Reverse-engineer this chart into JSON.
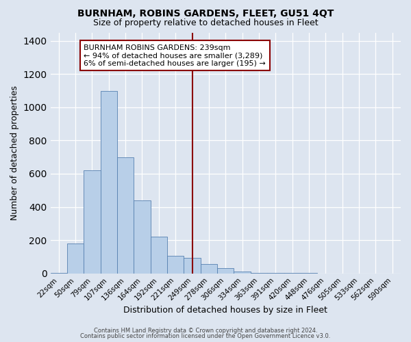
{
  "title": "BURNHAM, ROBINS GARDENS, FLEET, GU51 4QT",
  "subtitle": "Size of property relative to detached houses in Fleet",
  "xlabel": "Distribution of detached houses by size in Fleet",
  "ylabel": "Number of detached properties",
  "categories": [
    "22sqm",
    "50sqm",
    "79sqm",
    "107sqm",
    "136sqm",
    "164sqm",
    "192sqm",
    "221sqm",
    "249sqm",
    "278sqm",
    "306sqm",
    "334sqm",
    "363sqm",
    "391sqm",
    "420sqm",
    "448sqm",
    "476sqm",
    "505sqm",
    "533sqm",
    "562sqm",
    "590sqm"
  ],
  "bar_heights": [
    5,
    180,
    620,
    1100,
    700,
    440,
    220,
    105,
    95,
    55,
    30,
    10,
    5,
    3,
    2,
    1,
    0,
    0,
    0,
    0,
    0
  ],
  "bar_color": "#b8cfe8",
  "bar_edge_color": "#5580b0",
  "background_color": "#dde5f0",
  "grid_color": "#ffffff",
  "annotation_box_text": "BURNHAM ROBINS GARDENS: 239sqm\n← 94% of detached houses are smaller (3,289)\n6% of semi-detached houses are larger (195) →",
  "annotation_box_color": "#ffffff",
  "annotation_line_color": "#8b0000",
  "ylim": [
    0,
    1450
  ],
  "yticks": [
    0,
    200,
    400,
    600,
    800,
    1000,
    1200,
    1400
  ],
  "footer_line1": "Contains HM Land Registry data © Crown copyright and database right 2024.",
  "footer_line2": "Contains public sector information licensed under the Open Government Licence v3.0.",
  "title_fontsize": 10,
  "subtitle_fontsize": 9,
  "xlabel_fontsize": 9,
  "ylabel_fontsize": 9
}
